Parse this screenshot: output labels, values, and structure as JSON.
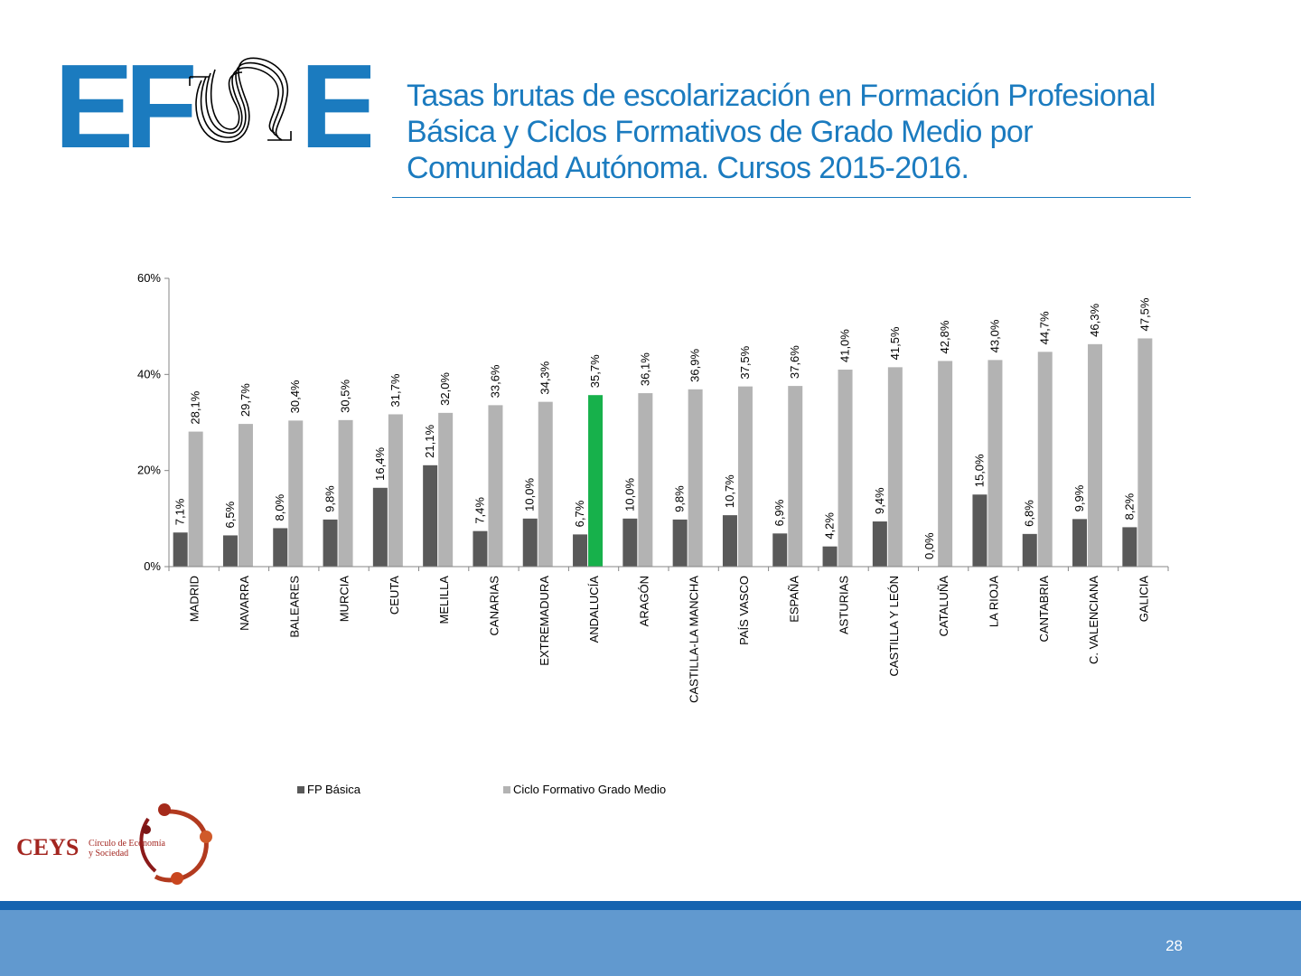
{
  "header": {
    "title_lines": [
      "Tasas brutas de escolarización en Formación Profesional",
      "Básica y Ciclos Formativos de Grado Medio  por",
      "Comunidad Autónoma. Cursos 2015-2016."
    ],
    "logo_letters": [
      "E",
      "F",
      "E"
    ],
    "logo_color": "#1b7bbf"
  },
  "chart_data": {
    "type": "bar",
    "categories": [
      "MADRID",
      "NAVARRA",
      "BALEARES",
      "MURCIA",
      "CEUTA",
      "MELILLA",
      "CANARIAS",
      "EXTREMADURA",
      "ANDALUCÍA",
      "ARAGÓN",
      "CASTILLA-LA MANCHA",
      "PAÍS VASCO",
      "ESPAÑA",
      "ASTURIAS",
      "CASTILLA Y LEÓN",
      "CATALUÑA",
      "LA RIOJA",
      "CANTABRIA",
      "C. VALENCIANA",
      "GALICIA"
    ],
    "series": [
      {
        "name": "FP Básica",
        "color": "#595959",
        "values": [
          7.1,
          6.5,
          8.0,
          9.8,
          16.4,
          21.1,
          7.4,
          10.0,
          6.7,
          10.0,
          9.8,
          10.7,
          6.9,
          4.2,
          9.4,
          0.0,
          15.0,
          6.8,
          9.9,
          8.2
        ],
        "labels": [
          "7,1%",
          "6,5%",
          "8,0%",
          "9,8%",
          "16,4%",
          "21,1%",
          "7,4%",
          "10,0%",
          "6,7%",
          "10,0%",
          "9,8%",
          "10,7%",
          "6,9%",
          "4,2%",
          "9,4%",
          "0,0%",
          "15,0%",
          "6,8%",
          "9,9%",
          "8,2%"
        ]
      },
      {
        "name": "Ciclo Formativo Grado Medio",
        "color": "#b3b3b3",
        "highlight_index": 8,
        "highlight_color": "#17b14b",
        "values": [
          28.1,
          29.7,
          30.4,
          30.5,
          31.7,
          32.0,
          33.6,
          34.3,
          35.7,
          36.1,
          36.9,
          37.5,
          37.6,
          41.0,
          41.5,
          42.8,
          43.0,
          44.7,
          46.3,
          47.5
        ],
        "labels": [
          "28,1%",
          "29,7%",
          "30,4%",
          "30,5%",
          "31,7%",
          "32,0%",
          "33,6%",
          "34,3%",
          "35,7%",
          "36,1%",
          "36,9%",
          "37,5%",
          "37,6%",
          "41,0%",
          "41,5%",
          "42,8%",
          "43,0%",
          "44,7%",
          "46,3%",
          "47,5%"
        ]
      }
    ],
    "y_ticks": [
      0,
      20,
      40,
      60
    ],
    "y_tick_labels": [
      "0%",
      "20%",
      "40%",
      "60%"
    ],
    "ylim": [
      0,
      60
    ],
    "grid": false,
    "legend_position": "bottom"
  },
  "footer": {
    "logo_text": "CEYS",
    "logo_subtext_1": "Círculo de Economía",
    "logo_subtext_2": "y Sociedad",
    "page_number": "28"
  }
}
